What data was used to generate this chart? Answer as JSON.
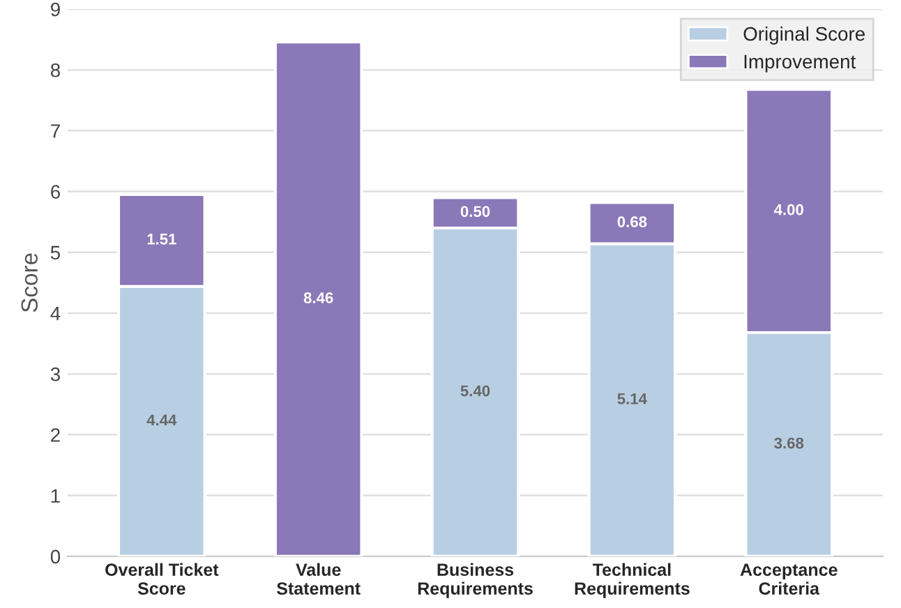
{
  "chart_data": {
    "type": "bar",
    "stacked": true,
    "ylabel": "Score",
    "categories": [
      "Overall Ticket\nScore",
      "Value\nStatement",
      "Business\nRequirements",
      "Technical\nRequirements",
      "Acceptance\nCriteria"
    ],
    "series": [
      {
        "name": "Original Score",
        "color": "#b8cfe3",
        "values": [
          4.44,
          0,
          5.4,
          5.14,
          3.68
        ],
        "value_labels": [
          "4.44",
          null,
          "5.40",
          "5.14",
          "3.68"
        ]
      },
      {
        "name": "Improvement",
        "color": "#8b78b8",
        "values": [
          1.51,
          8.46,
          0.5,
          0.68,
          4.0
        ],
        "value_labels": [
          "1.51",
          "8.46",
          "0.50",
          "0.68",
          "4.00"
        ]
      }
    ],
    "ylim": [
      0,
      9
    ],
    "yticks": [
      0,
      1,
      2,
      3,
      4,
      5,
      6,
      7,
      8,
      9
    ],
    "grid": "y",
    "legend": "top right"
  }
}
